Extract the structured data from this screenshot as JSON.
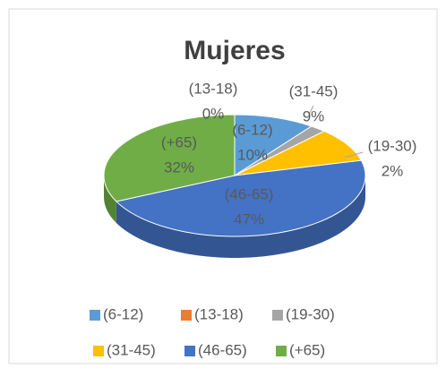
{
  "chart_data": {
    "type": "pie3d",
    "title": "Mujeres",
    "categories": [
      "(6-12)",
      "(13-18)",
      "(19-30)",
      "(31-45)",
      "(46-65)",
      "(+65)"
    ],
    "values": [
      10,
      0,
      2,
      9,
      47,
      32
    ],
    "value_labels": [
      "10%",
      "0%",
      "2%",
      "9%",
      "47%",
      "32%"
    ],
    "colors": [
      "#5b9bd5",
      "#ed7d31",
      "#a5a5a5",
      "#ffc000",
      "#4472c4",
      "#70ad47"
    ],
    "legend": "bottom"
  }
}
